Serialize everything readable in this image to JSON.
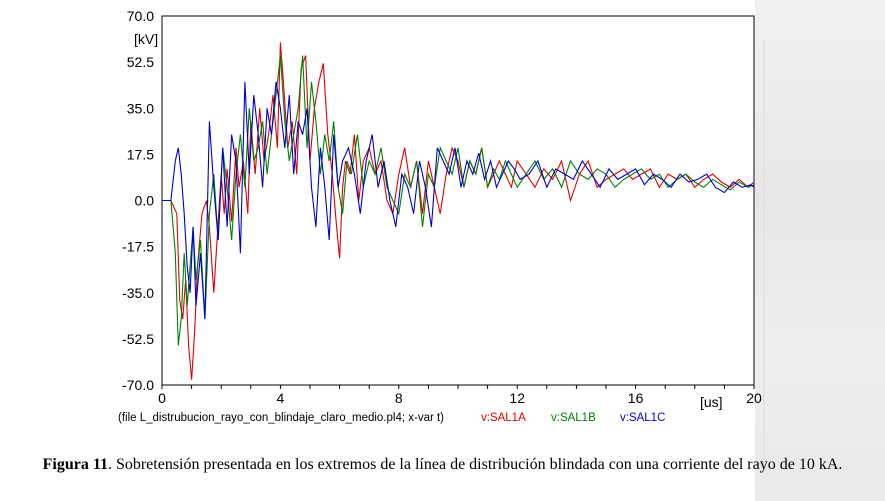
{
  "chart_data": {
    "type": "line",
    "ylabel": "[kV]",
    "xlabel": "[us]",
    "xlim": [
      0,
      20
    ],
    "ylim": [
      -70,
      70
    ],
    "x_ticks": [
      "0",
      "4",
      "8",
      "12",
      "16",
      "20"
    ],
    "y_ticks": [
      "70.0",
      "52.5",
      "35.0",
      "17.5",
      "0.0",
      "-17.5",
      "-35.0",
      "-52.5",
      "-70.0"
    ],
    "grid": true,
    "legend_prefix": "(file L_distrubucion_rayo_con_blindaje_claro_medio.pl4; x-var t)",
    "series": [
      {
        "name": "v:SAL1A",
        "color": "#e00000",
        "x": [
          0,
          0.3,
          0.5,
          0.6,
          0.7,
          0.8,
          0.9,
          1.0,
          1.1,
          1.2,
          1.35,
          1.5,
          1.6,
          1.75,
          1.9,
          2.0,
          2.1,
          2.2,
          2.35,
          2.5,
          2.6,
          2.75,
          2.9,
          3.0,
          3.15,
          3.3,
          3.45,
          3.6,
          3.75,
          3.9,
          4.0,
          4.1,
          4.25,
          4.4,
          4.55,
          4.7,
          4.85,
          5.0,
          5.15,
          5.3,
          5.45,
          5.6,
          5.75,
          5.9,
          6.0,
          6.1,
          6.2,
          6.35,
          6.5,
          6.65,
          6.8,
          7.0,
          7.2,
          7.4,
          7.6,
          7.8,
          8.0,
          8.2,
          8.4,
          8.6,
          8.8,
          9.0,
          9.2,
          9.4,
          9.6,
          9.8,
          10.0,
          10.2,
          10.4,
          10.6,
          10.8,
          11.0,
          11.2,
          11.4,
          11.6,
          11.8,
          12.0,
          12.3,
          12.6,
          12.9,
          13.2,
          13.5,
          13.8,
          14.1,
          14.4,
          14.7,
          15.0,
          15.3,
          15.6,
          15.9,
          16.2,
          16.5,
          16.8,
          17.1,
          17.4,
          17.7,
          18.0,
          18.3,
          18.6,
          18.9,
          19.2,
          19.5,
          19.8,
          20.0
        ],
        "y": [
          0,
          0,
          -5,
          -38,
          -45,
          -30,
          -55,
          -68,
          -50,
          -25,
          -5,
          0,
          -10,
          -35,
          -8,
          10,
          -5,
          12,
          -8,
          20,
          5,
          15,
          -5,
          30,
          10,
          35,
          15,
          25,
          40,
          20,
          60,
          45,
          20,
          30,
          10,
          50,
          55,
          15,
          35,
          45,
          52,
          25,
          10,
          -10,
          -22,
          5,
          15,
          10,
          25,
          0,
          15,
          20,
          10,
          15,
          0,
          -5,
          10,
          20,
          5,
          15,
          -5,
          15,
          5,
          -5,
          10,
          20,
          15,
          5,
          15,
          10,
          20,
          5,
          10,
          15,
          10,
          5,
          15,
          10,
          5,
          12,
          8,
          15,
          0,
          10,
          15,
          5,
          8,
          10,
          12,
          8,
          10,
          12,
          5,
          10,
          8,
          10,
          5,
          8,
          10,
          7,
          5,
          8,
          5,
          7
        ]
      },
      {
        "name": "v:SAL1B",
        "color": "#008000",
        "x": [
          0,
          0.3,
          0.45,
          0.55,
          0.65,
          0.75,
          0.85,
          0.95,
          1.05,
          1.15,
          1.3,
          1.45,
          1.6,
          1.75,
          1.9,
          2.05,
          2.2,
          2.35,
          2.5,
          2.65,
          2.8,
          2.95,
          3.1,
          3.25,
          3.4,
          3.55,
          3.7,
          3.85,
          4.0,
          4.15,
          4.3,
          4.45,
          4.6,
          4.75,
          4.9,
          5.05,
          5.2,
          5.35,
          5.5,
          5.65,
          5.8,
          5.95,
          6.1,
          6.25,
          6.4,
          6.6,
          6.8,
          7.0,
          7.2,
          7.4,
          7.6,
          7.8,
          8.0,
          8.2,
          8.4,
          8.6,
          8.8,
          9.0,
          9.2,
          9.4,
          9.6,
          9.8,
          10.0,
          10.2,
          10.4,
          10.6,
          10.8,
          11.0,
          11.2,
          11.4,
          11.6,
          11.8,
          12.0,
          12.3,
          12.6,
          12.9,
          13.2,
          13.5,
          13.8,
          14.1,
          14.4,
          14.7,
          15.0,
          15.3,
          15.6,
          15.9,
          16.2,
          16.5,
          16.8,
          17.1,
          17.4,
          17.7,
          18.0,
          18.3,
          18.6,
          18.9,
          19.2,
          19.5,
          19.8,
          20.0
        ],
        "y": [
          0,
          0,
          -20,
          -55,
          -45,
          -20,
          -40,
          -25,
          -10,
          -30,
          -15,
          -45,
          -5,
          10,
          -15,
          20,
          5,
          -15,
          10,
          25,
          5,
          35,
          15,
          20,
          30,
          10,
          25,
          40,
          55,
          30,
          15,
          25,
          35,
          55,
          20,
          45,
          30,
          10,
          25,
          15,
          30,
          5,
          -5,
          15,
          10,
          25,
          5,
          15,
          10,
          20,
          5,
          0,
          -5,
          10,
          5,
          15,
          -10,
          10,
          5,
          20,
          15,
          10,
          20,
          5,
          15,
          10,
          20,
          5,
          12,
          8,
          15,
          10,
          5,
          10,
          15,
          8,
          12,
          5,
          15,
          10,
          8,
          12,
          10,
          5,
          8,
          10,
          12,
          8,
          10,
          5,
          8,
          10,
          7,
          5,
          8,
          6,
          4,
          7,
          5,
          6
        ]
      },
      {
        "name": "v:SAL1C",
        "color": "#0000cc",
        "x": [
          0,
          0.3,
          0.45,
          0.55,
          0.65,
          0.75,
          0.85,
          0.95,
          1.05,
          1.15,
          1.3,
          1.45,
          1.6,
          1.75,
          1.9,
          2.05,
          2.2,
          2.35,
          2.5,
          2.65,
          2.8,
          2.95,
          3.1,
          3.25,
          3.4,
          3.55,
          3.7,
          3.85,
          4.0,
          4.15,
          4.3,
          4.45,
          4.6,
          4.75,
          4.9,
          5.05,
          5.2,
          5.35,
          5.5,
          5.65,
          5.8,
          5.95,
          6.1,
          6.3,
          6.5,
          6.7,
          6.9,
          7.1,
          7.3,
          7.5,
          7.7,
          7.9,
          8.1,
          8.3,
          8.5,
          8.7,
          8.9,
          9.1,
          9.3,
          9.5,
          9.7,
          9.9,
          10.1,
          10.3,
          10.5,
          10.7,
          10.9,
          11.1,
          11.3,
          11.5,
          11.7,
          11.9,
          12.1,
          12.4,
          12.7,
          13.0,
          13.3,
          13.6,
          13.9,
          14.2,
          14.5,
          14.8,
          15.1,
          15.4,
          15.7,
          16.0,
          16.3,
          16.6,
          16.9,
          17.2,
          17.5,
          17.8,
          18.1,
          18.4,
          18.7,
          19.0,
          19.3,
          19.6,
          19.9,
          20.0
        ],
        "y": [
          0,
          0,
          15,
          20,
          10,
          -5,
          -25,
          -35,
          -10,
          -40,
          -20,
          -45,
          30,
          5,
          -15,
          20,
          -10,
          25,
          15,
          -20,
          45,
          10,
          40,
          25,
          5,
          35,
          25,
          45,
          35,
          20,
          40,
          10,
          30,
          25,
          35,
          5,
          -10,
          20,
          5,
          -15,
          25,
          5,
          15,
          20,
          10,
          -5,
          15,
          25,
          5,
          15,
          0,
          -10,
          10,
          5,
          -5,
          15,
          5,
          -10,
          20,
          15,
          10,
          20,
          5,
          15,
          10,
          18,
          8,
          15,
          5,
          10,
          15,
          12,
          8,
          10,
          15,
          5,
          12,
          10,
          8,
          15,
          10,
          5,
          12,
          8,
          10,
          12,
          6,
          10,
          8,
          5,
          10,
          7,
          8,
          10,
          5,
          3,
          7,
          5,
          6,
          5
        ]
      }
    ]
  },
  "caption": {
    "label": "Figura 11",
    "text": ". Sobretensión presentada en los extremos de la línea de distribución blindada con una corriente del rayo de 10 kA."
  }
}
